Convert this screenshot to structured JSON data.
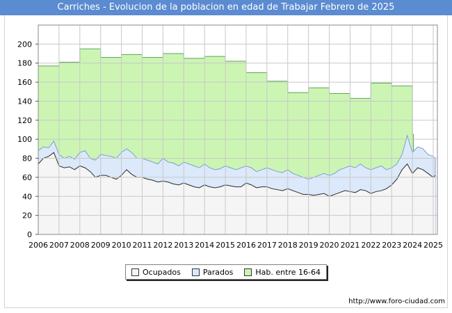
{
  "title": "Carriches - Evolucion de la poblacion en edad de Trabajar Febrero de 2025",
  "url": "http://www.foro-ciudad.com",
  "chart_data": {
    "type": "area",
    "title": "Carriches - Evolucion de la poblacion en edad de Trabajar Febrero de 2025",
    "xlabel": "",
    "ylabel": "",
    "xlim": [
      2006,
      2025.2
    ],
    "ylim": [
      0,
      220
    ],
    "yticks": [
      0,
      20,
      40,
      60,
      80,
      100,
      120,
      140,
      160,
      180,
      200
    ],
    "xticks": [
      "2006",
      "2007",
      "2008",
      "2009",
      "2010",
      "2011",
      "2012",
      "2013",
      "2014",
      "2015",
      "2016",
      "2017",
      "2018",
      "2019",
      "2020",
      "2021",
      "2022",
      "2023",
      "2024",
      "2025"
    ],
    "grid": true,
    "legend_position": "bottom-center",
    "colors": {
      "hab": "#ccf5b4",
      "hab_line": "#5aa55a",
      "parados": "#dbe9fa",
      "parados_line": "#7a9fd0",
      "ocupados": "#f5f5f5",
      "ocupados_line": "#2a2a2a"
    },
    "series": [
      {
        "name": "Hab. entre 16-64",
        "x": [
          2006,
          2007,
          2008,
          2009,
          2010,
          2011,
          2012,
          2013,
          2014,
          2015,
          2016,
          2017,
          2018,
          2019,
          2020,
          2021,
          2022,
          2023,
          2024
        ],
        "values": [
          177,
          181,
          195,
          186,
          189,
          186,
          190,
          185,
          187,
          182,
          170,
          161,
          149,
          154,
          148,
          143,
          159,
          156,
          105
        ]
      },
      {
        "name": "Parados",
        "x": [
          2006,
          2006.25,
          2006.5,
          2006.75,
          2007,
          2007.25,
          2007.5,
          2007.75,
          2008,
          2008.25,
          2008.5,
          2008.75,
          2009,
          2009.25,
          2009.5,
          2009.75,
          2010,
          2010.25,
          2010.5,
          2010.75,
          2011,
          2011.25,
          2011.5,
          2011.75,
          2012,
          2012.25,
          2012.5,
          2012.75,
          2013,
          2013.25,
          2013.5,
          2013.75,
          2014,
          2014.25,
          2014.5,
          2014.75,
          2015,
          2015.25,
          2015.5,
          2015.75,
          2016,
          2016.25,
          2016.5,
          2016.75,
          2017,
          2017.25,
          2017.5,
          2017.75,
          2018,
          2018.25,
          2018.5,
          2018.75,
          2019,
          2019.25,
          2019.5,
          2019.75,
          2020,
          2020.25,
          2020.5,
          2020.75,
          2021,
          2021.25,
          2021.5,
          2021.75,
          2022,
          2022.25,
          2022.5,
          2022.75,
          2023,
          2023.25,
          2023.5,
          2023.75,
          2024,
          2024.25,
          2024.5,
          2024.75,
          2025,
          2025.1
        ],
        "values": [
          88,
          92,
          91,
          98,
          84,
          80,
          82,
          79,
          86,
          88,
          80,
          78,
          84,
          83,
          82,
          80,
          86,
          90,
          86,
          80,
          80,
          78,
          76,
          74,
          80,
          76,
          75,
          72,
          76,
          74,
          72,
          70,
          74,
          70,
          68,
          69,
          72,
          70,
          68,
          70,
          72,
          70,
          66,
          68,
          70,
          68,
          66,
          65,
          68,
          64,
          62,
          60,
          58,
          60,
          62,
          64,
          62,
          64,
          68,
          70,
          72,
          70,
          74,
          70,
          68,
          70,
          72,
          68,
          70,
          74,
          84,
          104,
          86,
          92,
          90,
          84,
          82,
          80
        ]
      },
      {
        "name": "Ocupados",
        "x": [
          2006,
          2006.25,
          2006.5,
          2006.75,
          2007,
          2007.25,
          2007.5,
          2007.75,
          2008,
          2008.25,
          2008.5,
          2008.75,
          2009,
          2009.25,
          2009.5,
          2009.75,
          2010,
          2010.25,
          2010.5,
          2010.75,
          2011,
          2011.25,
          2011.5,
          2011.75,
          2012,
          2012.25,
          2012.5,
          2012.75,
          2013,
          2013.25,
          2013.5,
          2013.75,
          2014,
          2014.25,
          2014.5,
          2014.75,
          2015,
          2015.25,
          2015.5,
          2015.75,
          2016,
          2016.25,
          2016.5,
          2016.75,
          2017,
          2017.25,
          2017.5,
          2017.75,
          2018,
          2018.25,
          2018.5,
          2018.75,
          2019,
          2019.25,
          2019.5,
          2019.75,
          2020,
          2020.25,
          2020.5,
          2020.75,
          2021,
          2021.25,
          2021.5,
          2021.75,
          2022,
          2022.25,
          2022.5,
          2022.75,
          2023,
          2023.25,
          2023.5,
          2023.75,
          2024,
          2024.25,
          2024.5,
          2024.75,
          2025,
          2025.1
        ],
        "values": [
          74,
          80,
          82,
          86,
          72,
          70,
          71,
          68,
          72,
          70,
          66,
          60,
          62,
          62,
          60,
          58,
          62,
          68,
          63,
          60,
          60,
          58,
          57,
          55,
          56,
          55,
          53,
          52,
          54,
          52,
          50,
          49,
          52,
          50,
          49,
          50,
          52,
          51,
          50,
          50,
          54,
          52,
          49,
          50,
          50,
          48,
          47,
          46,
          48,
          46,
          44,
          42,
          42,
          41,
          42,
          43,
          40,
          42,
          44,
          46,
          45,
          44,
          47,
          46,
          43,
          45,
          46,
          48,
          52,
          58,
          68,
          74,
          64,
          70,
          68,
          64,
          60,
          62
        ]
      }
    ]
  },
  "legend": {
    "items": [
      {
        "label": "Ocupados"
      },
      {
        "label": "Parados"
      },
      {
        "label": "Hab. entre 16-64"
      }
    ]
  }
}
